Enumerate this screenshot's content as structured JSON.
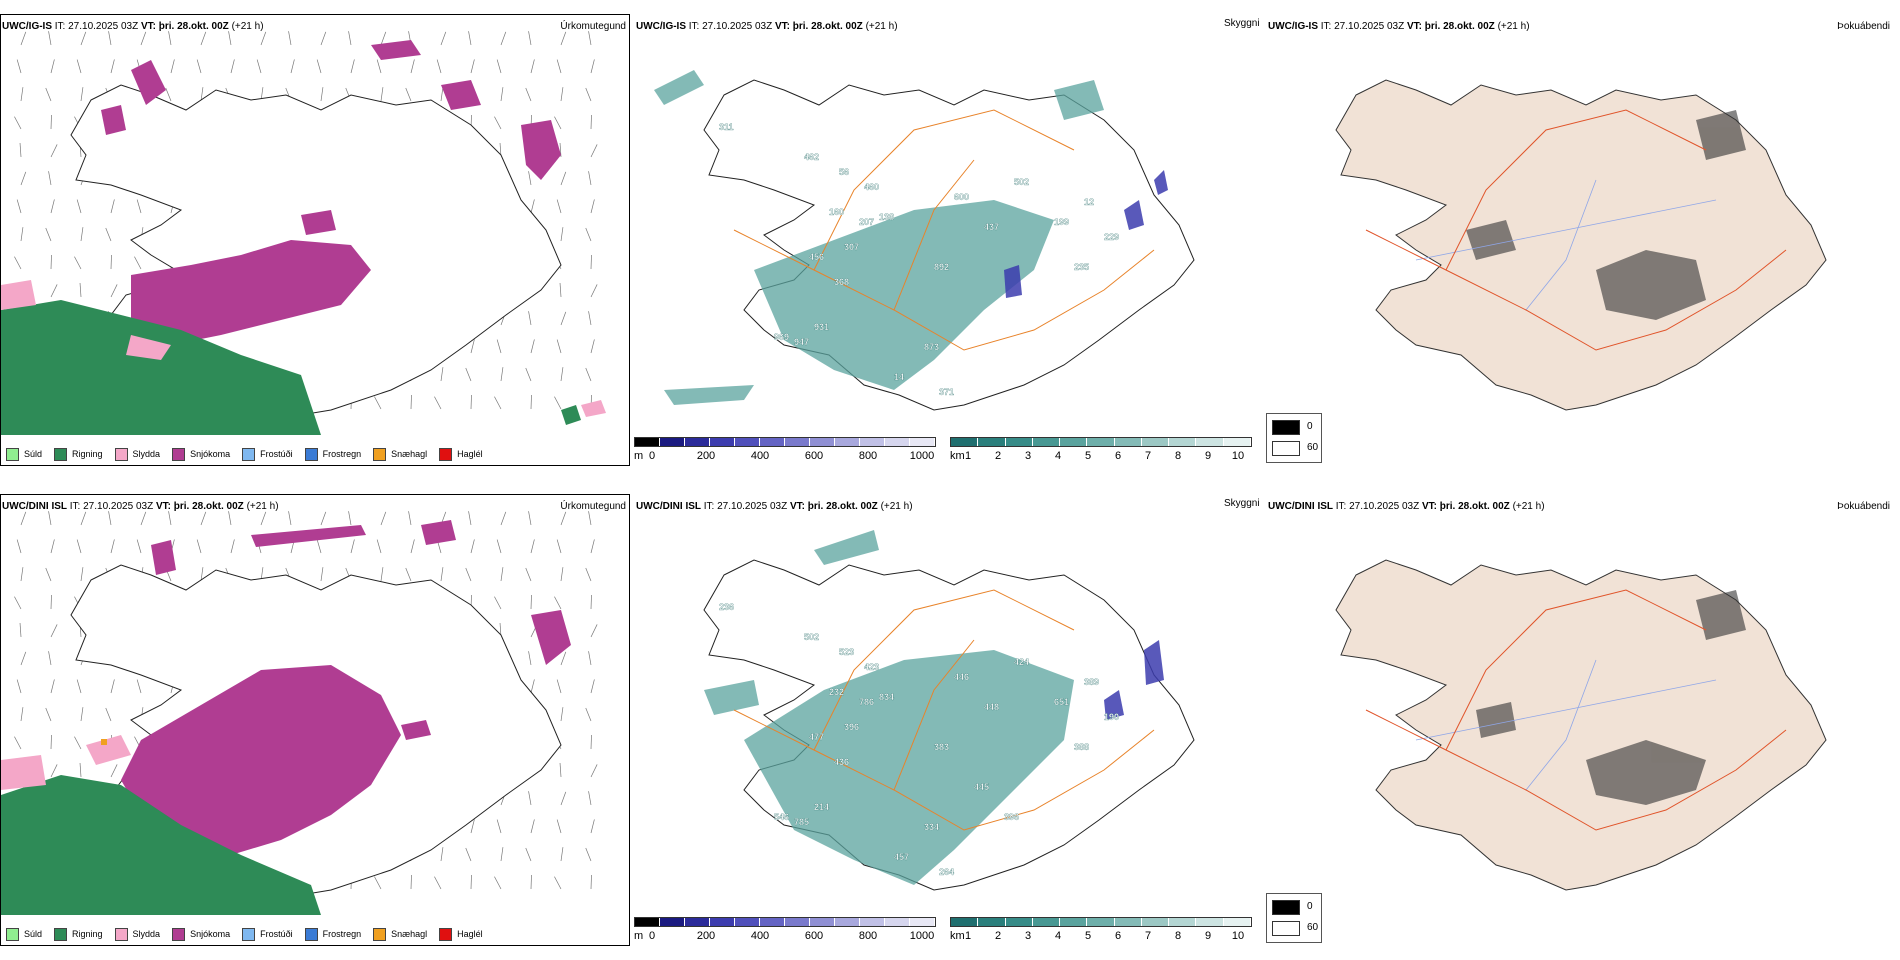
{
  "rows": [
    {
      "model": "UWC/IG-IS",
      "it_label": "IT:",
      "it_value": "27.10.2025 03Z",
      "vt_label": "VT:",
      "vt_value": "þri. 28.okt. 00Z",
      "lead": "(+21 h)"
    },
    {
      "model": "UWC/DINI ISL",
      "it_label": "IT:",
      "it_value": "27.10.2025 03Z",
      "vt_label": "VT:",
      "vt_value": "þri. 28.okt. 00Z",
      "lead": "(+21 h)"
    }
  ],
  "panel_titles": {
    "precip": "Úrkomutegund",
    "cloud": "Skyggni",
    "fog": "Þokuábendi"
  },
  "precip_legend": [
    {
      "label": "Súld",
      "color": "#90ee90"
    },
    {
      "label": "Rigning",
      "color": "#2e8b57"
    },
    {
      "label": "Slydda",
      "color": "#f4a7c8"
    },
    {
      "label": "Snjókoma",
      "color": "#b03d92"
    },
    {
      "label": "Frostúði",
      "color": "#7fb8f0"
    },
    {
      "label": "Frostregn",
      "color": "#3a7bd5"
    },
    {
      "label": "Snæhagl",
      "color": "#f0a020"
    },
    {
      "label": "Haglél",
      "color": "#e01010"
    }
  ],
  "cloudbase_scale": {
    "unit": "m",
    "ticks": [
      "0",
      "200",
      "400",
      "600",
      "800",
      "1000"
    ],
    "colors": [
      "#000000",
      "#1a1a80",
      "#2b2b9a",
      "#3c3cae",
      "#5050bb",
      "#6464c4",
      "#7a7acc",
      "#9090d4",
      "#a8a8dd",
      "#c0c0e6",
      "#d6d6ee",
      "#e8e8f5"
    ]
  },
  "visibility_scale": {
    "unit": "km",
    "ticks": [
      "1",
      "2",
      "3",
      "4",
      "5",
      "6",
      "7",
      "8",
      "9",
      "10"
    ],
    "colors": [
      "#1f6f6f",
      "#2a7f7c",
      "#378c88",
      "#489893",
      "#5aa39e",
      "#6eafaa",
      "#84bbb7",
      "#9cc8c4",
      "#b4d6d3",
      "#cde4e2",
      "#e6f2f1"
    ]
  },
  "fog_legend": [
    {
      "value": "0",
      "color": "#000000"
    },
    {
      "value": "60",
      "color": "#ffffff"
    }
  ],
  "cloud_labels_row1": [
    "311",
    "462",
    "56",
    "460",
    "160",
    "207",
    "307",
    "456",
    "368",
    "138",
    "600",
    "437",
    "502",
    "199",
    "12",
    "229",
    "235",
    "892",
    "969",
    "947",
    "931",
    "873",
    "14",
    "371"
  ],
  "cloud_labels_row2": [
    "236",
    "502",
    "523",
    "423",
    "232",
    "786",
    "396",
    "477",
    "436",
    "834",
    "446",
    "448",
    "424",
    "651",
    "389",
    "190",
    "388",
    "383",
    "546",
    "785",
    "214",
    "334",
    "457",
    "264",
    "445",
    "396"
  ]
}
